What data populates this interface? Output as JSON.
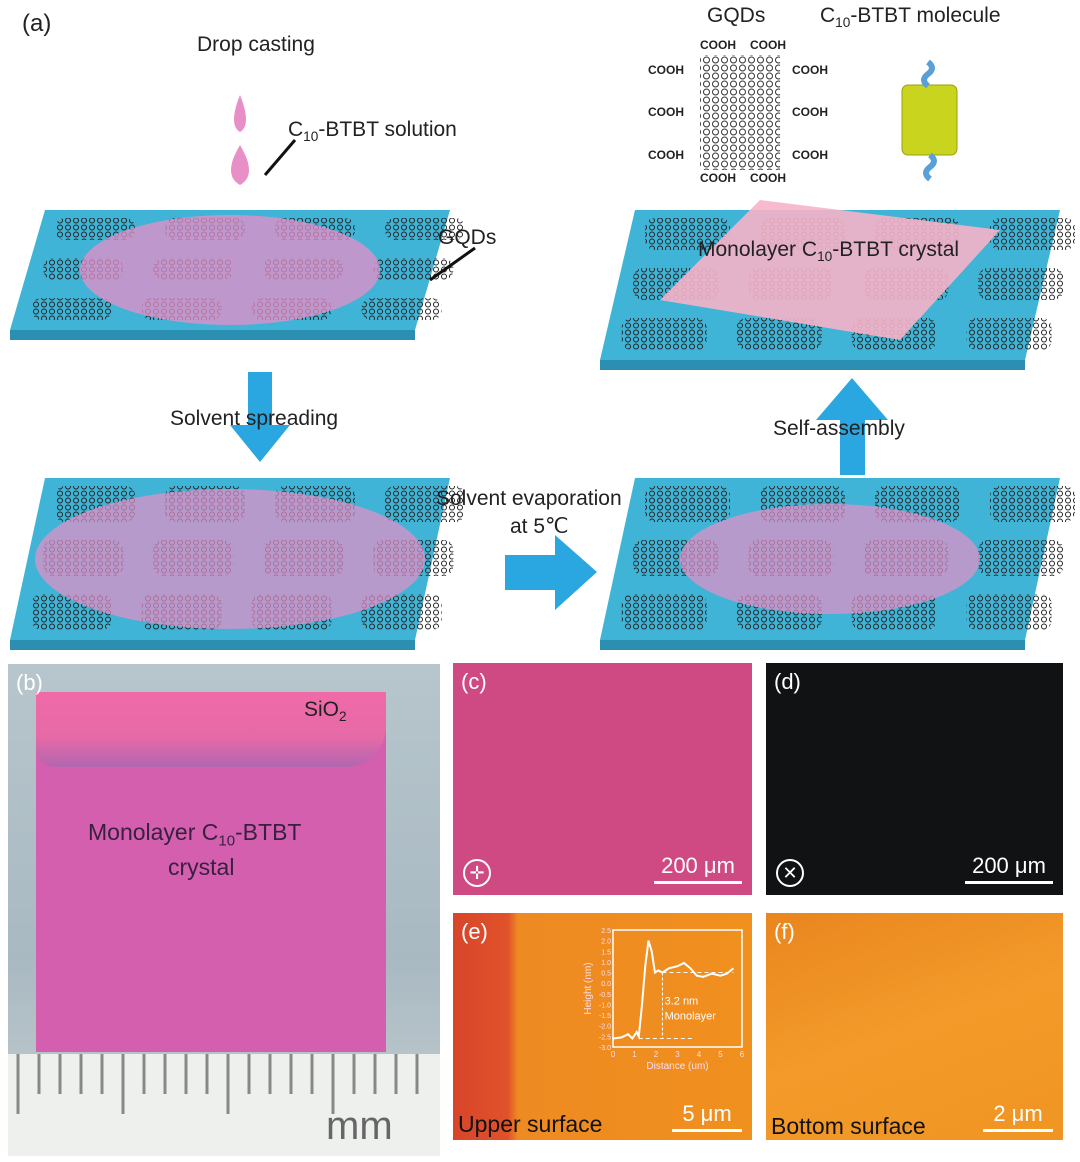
{
  "panel_a": {
    "label": "(a)",
    "drop_casting": "Drop casting",
    "solution": {
      "pre": "C",
      "sub": "10",
      "post": "-BTBT solution"
    },
    "gqds": "GQDs",
    "solvent_spreading": "Solvent spreading",
    "solvent_evaporation_1": "Solvent evaporation",
    "solvent_evaporation_2": "at 5℃",
    "self_assembly": "Self-assembly",
    "monolayer_crystal": {
      "pre": "Monolayer C",
      "sub": "10",
      "post": "-BTBT crystal"
    },
    "legend_gqds": "GQDs",
    "legend_molecule": {
      "pre": "C",
      "sub": "10",
      "post": "-BTBT molecule"
    },
    "cooh": "COOH",
    "colors": {
      "substrate": "#3fb4d6",
      "solution": "#e98fc8",
      "arrow": "#2aa6e0",
      "molecule": "#c8d41e"
    }
  },
  "panel_b": {
    "label": "(b)",
    "sio2": {
      "pre": "SiO",
      "sub": "2"
    },
    "crystal_1": {
      "pre": "Monolayer C",
      "sub": "10",
      "post": "-BTBT"
    },
    "crystal_2": "crystal",
    "unit": "mm"
  },
  "panel_c": {
    "label": "(c)",
    "scale": "200 μm",
    "icon": "crossed-polarizers-parallel-icon"
  },
  "panel_d": {
    "label": "(d)",
    "scale": "200 μm",
    "icon": "crossed-polarizers-rotated-icon"
  },
  "panel_e": {
    "label": "(e)",
    "caption": "Upper surface",
    "scale": "5 μm",
    "inset": {
      "ylabel": "Height (nm)",
      "xlabel": "Distance (um)",
      "annotation_1": "3.2 nm",
      "annotation_2": "Monolayer",
      "xticks": [
        "0",
        "1",
        "2",
        "3",
        "4",
        "5",
        "6"
      ],
      "yticks": [
        "2.5",
        "2.0",
        "1.5",
        "1.0",
        "0.5",
        "0.0",
        "-0.5",
        "-1.0",
        "-1.5",
        "-2.0",
        "-2.5",
        "-3.0"
      ],
      "xlim": [
        0,
        6
      ],
      "ylim": [
        -3,
        2.5
      ],
      "profile": [
        [
          0,
          -2.6
        ],
        [
          0.4,
          -2.55
        ],
        [
          0.7,
          -2.4
        ],
        [
          0.9,
          -2.6
        ],
        [
          1.1,
          -2.3
        ],
        [
          1.2,
          -2.5
        ],
        [
          1.35,
          -1
        ],
        [
          1.5,
          0.8
        ],
        [
          1.65,
          2.0
        ],
        [
          1.8,
          1.5
        ],
        [
          1.95,
          0.5
        ],
        [
          2.1,
          0.6
        ],
        [
          2.3,
          0.5
        ],
        [
          2.6,
          0.7
        ],
        [
          3.0,
          0.8
        ],
        [
          3.3,
          0.95
        ],
        [
          3.6,
          0.7
        ],
        [
          3.9,
          0.35
        ],
        [
          4.2,
          0.3
        ],
        [
          4.6,
          0.45
        ],
        [
          5.0,
          0.35
        ],
        [
          5.3,
          0.45
        ],
        [
          5.6,
          0.7
        ]
      ]
    }
  },
  "panel_f": {
    "label": "(f)",
    "caption": "Bottom surface",
    "scale": "2 μm"
  }
}
